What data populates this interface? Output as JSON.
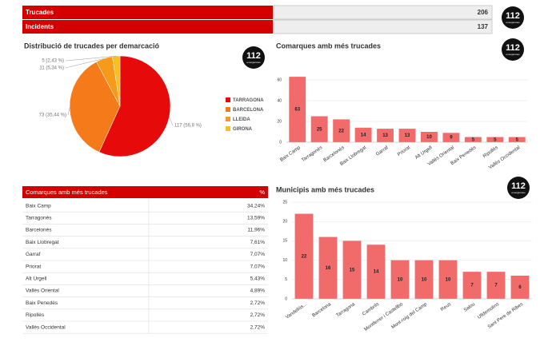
{
  "summary": {
    "rows": [
      {
        "label": "Trucades",
        "value": 206
      },
      {
        "label": "Incidents",
        "value": 137
      }
    ]
  },
  "logo": {
    "number": "112",
    "text": "emergències"
  },
  "chart_data": [
    {
      "type": "pie",
      "title": "Distribució de trucades per demarcació",
      "categories": [
        "TARRAGONA",
        "BARCELONA",
        "LLEIDA",
        "GIRONA"
      ],
      "values": [
        117,
        73,
        11,
        5
      ],
      "value_labels": [
        "117 (56,8 %)",
        "73 (35,44 %)",
        "11 (5,34 %)",
        "5 (2,43 %)"
      ],
      "colors": [
        "#e60a0a",
        "#f47a1a",
        "#f59a1a",
        "#f5c020"
      ]
    },
    {
      "type": "bar",
      "title": "Comarques amb més trucades",
      "categories": [
        "Baix Camp",
        "Tarragonès",
        "Barcelonès",
        "Baix Llobregat",
        "Garraf",
        "Priorat",
        "Alt Urgell",
        "Vallès Oriental",
        "Baix Penedès",
        "Ripollès",
        "Vallès Occidental"
      ],
      "values": [
        63,
        25,
        22,
        14,
        13,
        13,
        10,
        9,
        5,
        5,
        5
      ],
      "color": "#f26b6b",
      "ylim": [
        0,
        65
      ],
      "yticks": [
        0,
        20,
        40,
        60
      ],
      "grid": true
    },
    {
      "type": "bar",
      "title": "Municipis amb més trucades",
      "categories": [
        "Vandellòs...",
        "Barcelona",
        "Tarragona",
        "Cambrils",
        "Montferrer i Castellbò",
        "Mont-roig del Camp",
        "Reus",
        "Salou",
        "Ulldemolins",
        "Sant Pere de Ribes"
      ],
      "values": [
        22,
        16,
        15,
        14,
        10,
        10,
        10,
        7,
        7,
        6
      ],
      "color": "#f26b6b",
      "ylim": [
        0,
        25
      ],
      "yticks": [
        0,
        5,
        10,
        15,
        20,
        25
      ],
      "grid": true
    }
  ],
  "table": {
    "headers": [
      "Comarques amb més trucades",
      "%"
    ],
    "rows": [
      [
        "Baix Camp",
        "34,24%"
      ],
      [
        "Tarragonès",
        "13,59%"
      ],
      [
        "Barcelonès",
        "11,96%"
      ],
      [
        "Baix Llobregat",
        "7,61%"
      ],
      [
        "Garraf",
        "7,07%"
      ],
      [
        "Priorat",
        "7,07%"
      ],
      [
        "Alt Urgell",
        "5,43%"
      ],
      [
        "Vallès Oriental",
        "4,89%"
      ],
      [
        "Baix Penedès",
        "2,72%"
      ],
      [
        "Ripollès",
        "2,72%"
      ],
      [
        "Vallès Occidental",
        "2,72%"
      ]
    ]
  }
}
